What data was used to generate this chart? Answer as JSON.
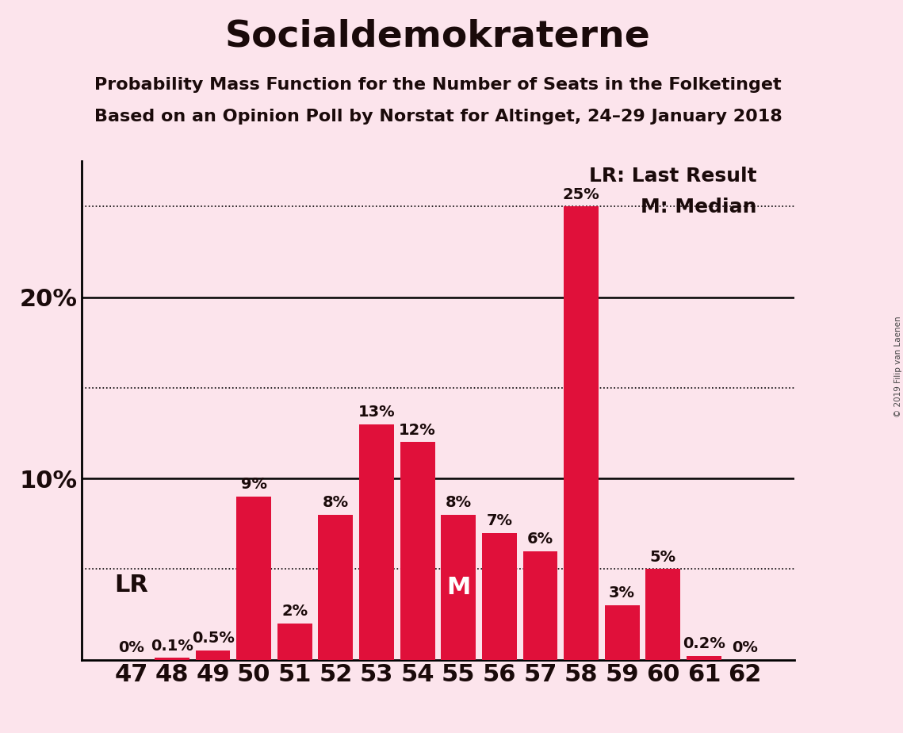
{
  "title": "Socialdemokraterne",
  "subtitle1": "Probability Mass Function for the Number of Seats in the Folketinget",
  "subtitle2": "Based on an Opinion Poll by Norstat for Altinget, 24–29 January 2018",
  "copyright": "© 2019 Filip van Laenen",
  "categories": [
    47,
    48,
    49,
    50,
    51,
    52,
    53,
    54,
    55,
    56,
    57,
    58,
    59,
    60,
    61,
    62
  ],
  "values": [
    0.0,
    0.1,
    0.5,
    9.0,
    2.0,
    8.0,
    13.0,
    12.0,
    8.0,
    7.0,
    6.0,
    25.0,
    3.0,
    5.0,
    0.2,
    0.0
  ],
  "labels": [
    "0%",
    "0.1%",
    "0.5%",
    "9%",
    "2%",
    "8%",
    "13%",
    "12%",
    "8%",
    "7%",
    "6%",
    "25%",
    "3%",
    "5%",
    "0.2%",
    "0%"
  ],
  "bar_color": "#e0103a",
  "background_color": "#fce4ec",
  "text_color": "#1a0a0a",
  "ylim": [
    0,
    27.5
  ],
  "solid_gridlines": [
    10,
    20
  ],
  "dotted_gridlines": [
    5,
    15,
    25
  ],
  "lr_seat": 47,
  "lr_label": "LR",
  "median_seat": 55,
  "median_label": "M",
  "legend_lr": "LR: Last Result",
  "legend_m": "M: Median",
  "title_fontsize": 34,
  "subtitle_fontsize": 16,
  "axis_tick_fontsize": 22,
  "bar_label_fontsize": 14,
  "legend_fontsize": 18,
  "annotation_fontsize": 22,
  "lr_annotation_fontsize": 22
}
